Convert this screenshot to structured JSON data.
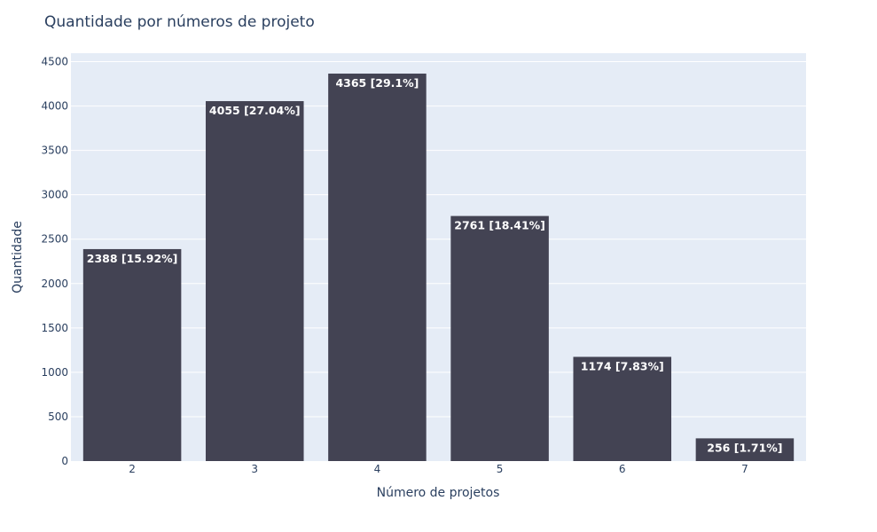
{
  "chart_data": {
    "type": "bar",
    "title": "Quantidade por números de projeto",
    "xlabel": "Número de projetos",
    "ylabel": "Quantidade",
    "categories": [
      "2",
      "3",
      "4",
      "5",
      "6",
      "7"
    ],
    "values": [
      2388,
      4055,
      4365,
      2761,
      1174,
      256
    ],
    "data_labels": [
      "2388 [15.92%]",
      "4055 [27.04%]",
      "4365 [29.1%]",
      "2761 [18.41%]",
      "1174 [7.83%]",
      "256 [1.71%]"
    ],
    "ylim": [
      0,
      4595
    ],
    "yticks": [
      0,
      500,
      1000,
      1500,
      2000,
      2500,
      3000,
      3500,
      4000,
      4500
    ],
    "ytick_labels": [
      "0",
      "500",
      "1000",
      "1500",
      "2000",
      "2500",
      "3000",
      "3500",
      "4000",
      "4500"
    ],
    "grid": true,
    "legend": "none",
    "colors": {
      "bar": "#434353",
      "plot_background": "#e5ecf6",
      "grid": "#ffffff",
      "text": "#2a3f5f",
      "bar_label": "#ffffff"
    }
  }
}
